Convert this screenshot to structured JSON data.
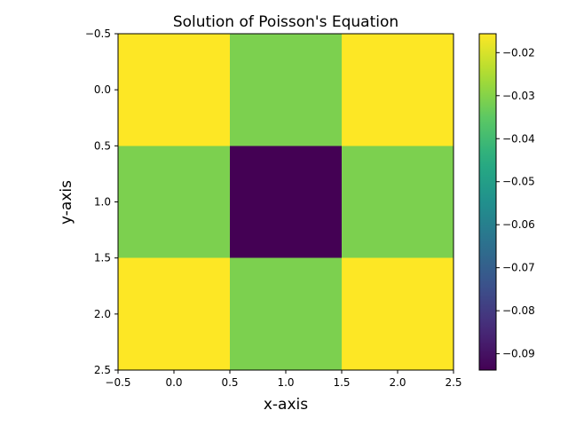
{
  "chart_data": {
    "type": "heatmap",
    "title": "Solution of Poisson's Equation",
    "xlabel": "x-axis",
    "ylabel": "y-axis",
    "x_ticks": [
      "-0.5",
      "0.0",
      "0.5",
      "1.0",
      "1.5",
      "2.0",
      "2.5"
    ],
    "y_ticks": [
      "-0.5",
      "0.0",
      "0.5",
      "1.0",
      "1.5",
      "2.0",
      "2.5"
    ],
    "xlim": [
      -0.5,
      2.5
    ],
    "ylim": [
      2.5,
      -0.5
    ],
    "x": [
      0,
      1,
      2
    ],
    "y": [
      0,
      1,
      2
    ],
    "z": [
      [
        -0.0156,
        -0.0312,
        -0.0156
      ],
      [
        -0.0312,
        -0.0938,
        -0.0312
      ],
      [
        -0.0156,
        -0.0312,
        -0.0156
      ]
    ],
    "colormap": "viridis",
    "colorbar": {
      "min": -0.0938,
      "max": -0.0156,
      "ticks": [
        -0.02,
        -0.03,
        -0.04,
        -0.05,
        -0.06,
        -0.07,
        -0.08,
        -0.09
      ],
      "tick_labels": [
        "−0.02",
        "−0.03",
        "−0.04",
        "−0.05",
        "−0.06",
        "−0.07",
        "−0.08",
        "−0.09"
      ]
    },
    "grid": false
  }
}
